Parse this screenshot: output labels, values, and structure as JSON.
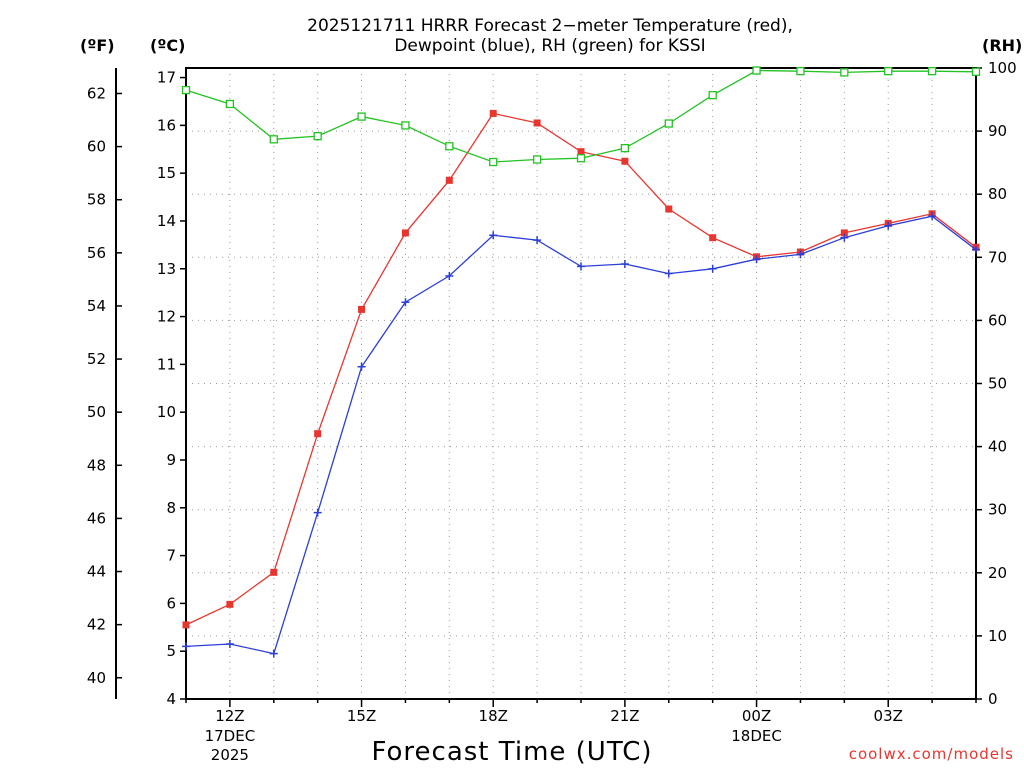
{
  "title_line1": "2025121711 HRRR Forecast 2−meter Temperature (red),",
  "title_line2": "Dewpoint (blue), RH (green) for KSSI",
  "unit_f": "(ºF)",
  "unit_c": "(ºC)",
  "unit_rh": "(RH)",
  "credit": "coolwx.com/models",
  "colors": {
    "temperature": "#e8362f",
    "dewpoint": "#2b3fd6",
    "rh": "#22c322",
    "grid": "#999999"
  },
  "chart_data": {
    "type": "line",
    "title": "2025121711 HRRR Forecast 2−meter Temperature (red), Dewpoint (blue), RH (green) for KSSI",
    "xlabel": "Forecast Time (UTC)",
    "x_hours": [
      11,
      12,
      13,
      14,
      15,
      16,
      17,
      18,
      19,
      20,
      21,
      22,
      23,
      24,
      25,
      26,
      27,
      28,
      29
    ],
    "xlim": [
      11,
      29
    ],
    "x_ticks": [
      {
        "hour": 12,
        "label": "12Z",
        "sub": [
          "17DEC",
          "2025"
        ]
      },
      {
        "hour": 15,
        "label": "15Z",
        "sub": []
      },
      {
        "hour": 18,
        "label": "18Z",
        "sub": []
      },
      {
        "hour": 21,
        "label": "21Z",
        "sub": []
      },
      {
        "hour": 24,
        "label": "00Z",
        "sub": [
          "18DEC"
        ]
      },
      {
        "hour": 27,
        "label": "03Z",
        "sub": []
      }
    ],
    "y_left_c": {
      "label": "(ºC)",
      "lim": [
        4,
        17.2
      ],
      "ticks": [
        4,
        5,
        6,
        7,
        8,
        9,
        10,
        11,
        12,
        13,
        14,
        15,
        16,
        17
      ]
    },
    "y_left_f": {
      "label": "(ºF)",
      "ticks": [
        40,
        42,
        44,
        46,
        48,
        50,
        52,
        54,
        56,
        58,
        60,
        62
      ]
    },
    "y_right": {
      "label": "(RH)",
      "lim": [
        0,
        100
      ],
      "ticks": [
        0,
        10,
        20,
        30,
        40,
        50,
        60,
        70,
        80,
        90,
        100
      ]
    },
    "series": [
      {
        "name": "Temperature",
        "axis": "c",
        "marker": "filled-square",
        "values": [
          5.55,
          5.98,
          6.65,
          9.55,
          12.15,
          13.75,
          14.85,
          16.25,
          16.05,
          15.45,
          15.25,
          14.25,
          13.65,
          13.25,
          13.35,
          13.75,
          13.95,
          14.15,
          13.45
        ]
      },
      {
        "name": "Dewpoint",
        "axis": "c",
        "marker": "plus",
        "values": [
          5.1,
          5.15,
          4.95,
          7.9,
          10.95,
          12.3,
          12.85,
          13.7,
          13.6,
          13.05,
          13.1,
          12.9,
          13.0,
          13.2,
          13.3,
          13.65,
          13.9,
          14.1,
          13.4
        ]
      },
      {
        "name": "RH",
        "axis": "rh",
        "marker": "open-square",
        "values": [
          96.5,
          94.3,
          88.7,
          89.2,
          92.3,
          90.9,
          87.6,
          85.1,
          85.5,
          85.7,
          87.3,
          91.2,
          95.7,
          99.6,
          99.5,
          99.3,
          99.5,
          99.5,
          99.4
        ]
      }
    ]
  }
}
